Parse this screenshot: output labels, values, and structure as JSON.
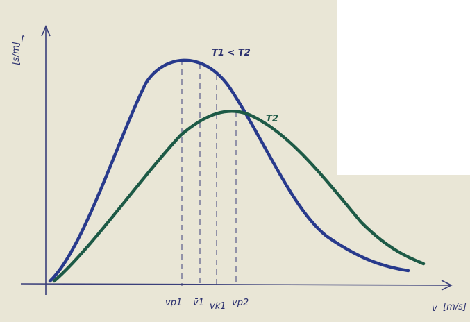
{
  "axes": {
    "y_label": "f",
    "y_unit": "[s/m]",
    "x_label": "v",
    "x_unit": "[m/s]"
  },
  "curves": [
    {
      "label": "T1 < T2"
    },
    {
      "label": "T2"
    }
  ],
  "markers": [
    "vp1",
    "v̄1",
    "vk1",
    "vp2"
  ]
}
